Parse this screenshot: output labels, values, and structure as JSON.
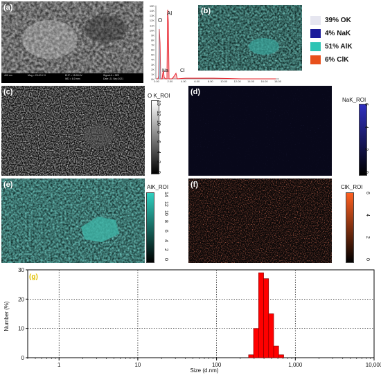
{
  "panels": {
    "a": {
      "label": "(a)",
      "footer": [
        "400 nm",
        "Mag = 25.00 K X",
        "EHT = 15.00 kV",
        "WD = 8.0 mm",
        "Signal A = SE2",
        "Date :21 Sep 2021"
      ]
    },
    "b": {
      "label": "(b)",
      "yticks": [
        "15K",
        "14K",
        "13K",
        "12K",
        "11K",
        "10K",
        "9K",
        "8K",
        "7K",
        "6K",
        "5K",
        "4K",
        "3K",
        "2K",
        "1K",
        "0K"
      ],
      "xticks": [
        "0.00",
        "2.00",
        "4.00",
        "6.00",
        "8.00",
        "10.00",
        "12.00",
        "14.00",
        "16.00",
        "18.00"
      ],
      "peaks": [
        "O",
        "Al",
        "Na",
        "Cl"
      ],
      "legend": [
        {
          "text": "39% OK",
          "color": "#e6e6f0"
        },
        {
          "text": "4% NaK",
          "color": "#1a1a9a"
        },
        {
          "text": "51% AlK",
          "color": "#2ec4b4"
        },
        {
          "text": "6% ClK",
          "color": "#e8501c"
        }
      ]
    },
    "c": {
      "label": "(c)",
      "roi": "O K_ROI",
      "ticks": [
        "13",
        "12",
        "10",
        "8",
        "6",
        "4",
        "2",
        "0"
      ],
      "colors": [
        "#ffffff",
        "#000000"
      ]
    },
    "d": {
      "label": "(d)",
      "roi": "NaK_ROI",
      "ticks": [
        "6",
        "4",
        "2",
        "0"
      ],
      "colors": [
        "#3030c0",
        "#000000"
      ]
    },
    "e": {
      "label": "(e)",
      "roi": "AlK_ROI",
      "ticks": [
        "14",
        "12",
        "10",
        "8",
        "6",
        "4",
        "2",
        "0"
      ],
      "colors": [
        "#30d0c0",
        "#000000"
      ]
    },
    "f": {
      "label": "(f)",
      "roi": "ClK_ROI",
      "ticks": [
        "6",
        "4",
        "2",
        "0"
      ],
      "colors": [
        "#ff6020",
        "#000000"
      ]
    },
    "g": {
      "label": "(g)"
    }
  },
  "chart_data": {
    "type": "bar",
    "xlabel": "Size (d.nm)",
    "ylabel": "Number (%)",
    "xscale": "log",
    "xlim": [
      0.4,
      10000
    ],
    "ylim": [
      0,
      30
    ],
    "yticks": [
      0,
      10,
      20,
      30
    ],
    "xticks": [
      "1",
      "10",
      "100",
      "1,000",
      "10,000"
    ],
    "grid": true,
    "bars": [
      {
        "x0": 255,
        "x1": 295,
        "y": 1
      },
      {
        "x0": 295,
        "x1": 342,
        "y": 10
      },
      {
        "x0": 342,
        "x1": 396,
        "y": 29
      },
      {
        "x0": 396,
        "x1": 458,
        "y": 27
      },
      {
        "x0": 458,
        "x1": 531,
        "y": 15
      },
      {
        "x0": 531,
        "x1": 615,
        "y": 4
      },
      {
        "x0": 615,
        "x1": 712,
        "y": 1
      }
    ]
  }
}
